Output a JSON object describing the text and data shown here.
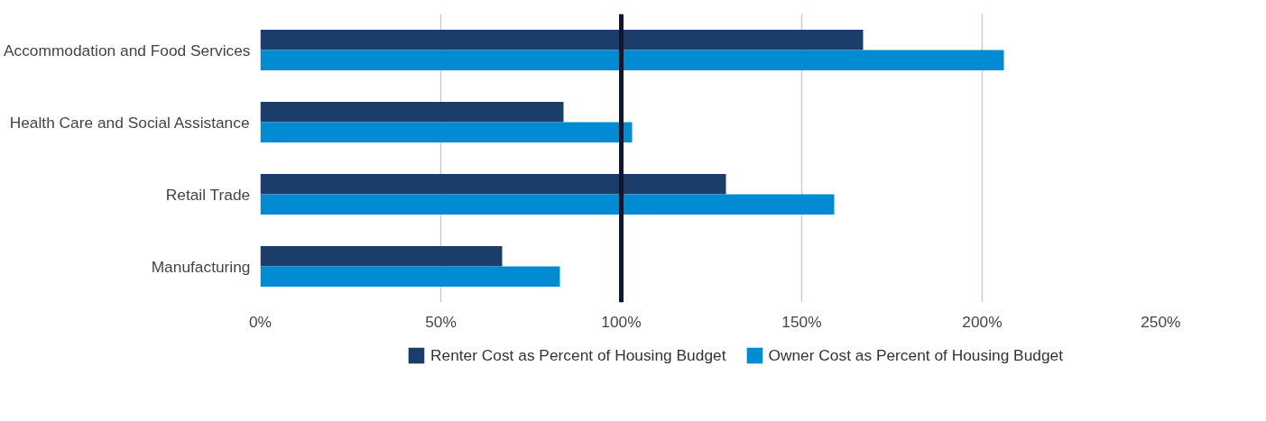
{
  "chart_data": {
    "type": "bar",
    "orientation": "horizontal",
    "categories": [
      "Accommodation and Food Services",
      "Health Care and Social Assistance",
      "Retail Trade",
      "Manufacturing"
    ],
    "series": [
      {
        "name": "Renter Cost as Percent of Housing Budget",
        "color": "#1b3d6b",
        "values": [
          167,
          84,
          129,
          67
        ]
      },
      {
        "name": "Owner Cost as Percent of Housing Budget",
        "color": "#008bd2",
        "values": [
          206,
          103,
          159,
          83
        ]
      }
    ],
    "xlim": [
      0,
      250
    ],
    "xticks": [
      {
        "value": 0,
        "label": "0%"
      },
      {
        "value": 50,
        "label": "50%"
      },
      {
        "value": 100,
        "label": "100%"
      },
      {
        "value": 150,
        "label": "150%"
      },
      {
        "value": 200,
        "label": "200%"
      },
      {
        "value": 250,
        "label": "250%"
      }
    ],
    "ref_lines": [
      {
        "axis": "x",
        "value": 100,
        "color": "#0f1630"
      }
    ],
    "grid": "x",
    "legend": "bottom"
  }
}
